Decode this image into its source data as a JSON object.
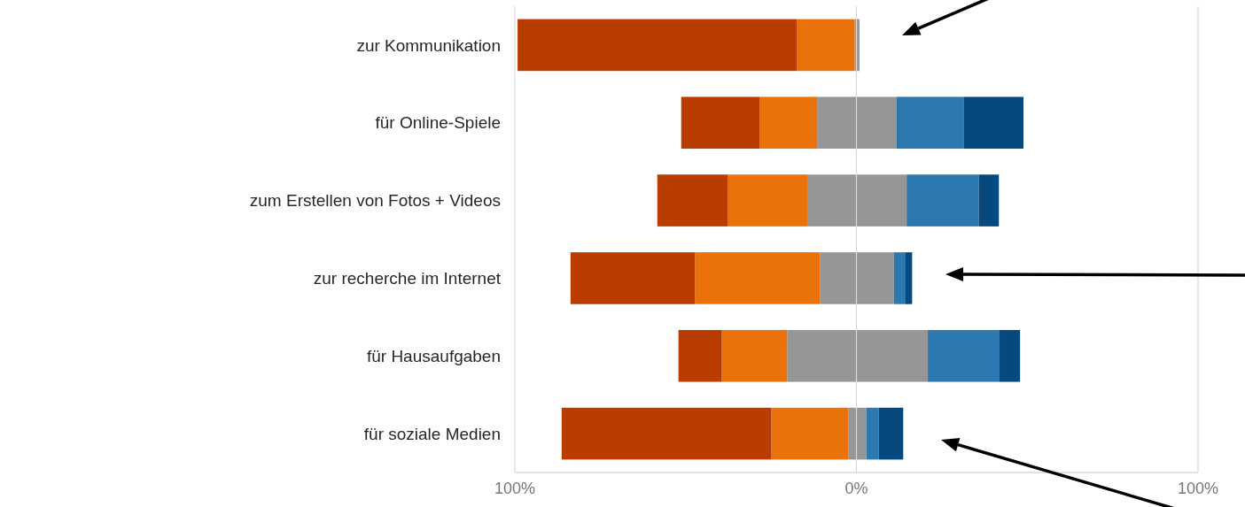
{
  "chart_data": {
    "type": "bar",
    "orientation": "horizontal",
    "stacked": true,
    "categories": [
      "zur Kommunikation",
      "für Online-Spiele",
      "zum Erstellen von Fotos + Videos",
      "zur recherche im Internet",
      "für Hausaufgaben",
      "für soziale Medien"
    ],
    "series": [
      {
        "color": "#969696",
        "values": [
          -0.5,
          -11.5,
          -14.4,
          -10.7,
          -20.3,
          -2.3
        ]
      },
      {
        "color": "#eb720b",
        "values": [
          -17.0,
          -16.9,
          -23.2,
          -36.6,
          -19.1,
          -22.6
        ]
      },
      {
        "color": "#b93c00",
        "values": [
          -81.7,
          -22.9,
          -20.7,
          -36.4,
          -12.7,
          -61.4
        ]
      },
      {
        "color": "#969696",
        "values": [
          0.9,
          11.8,
          14.7,
          11.0,
          20.9,
          2.9
        ]
      },
      {
        "color": "#2c78b0",
        "values": [
          0,
          19.7,
          21.1,
          3.2,
          21.0,
          3.6
        ]
      },
      {
        "color": "#05497f",
        "values": [
          0,
          17.4,
          5.9,
          2.1,
          6.0,
          7.2
        ]
      }
    ],
    "xlim": [
      -100,
      100
    ],
    "xticks": [
      {
        "value": -100,
        "label": "100%"
      },
      {
        "value": 0,
        "label": "0%"
      },
      {
        "value": 100,
        "label": "100%"
      }
    ],
    "grid": "x"
  }
}
